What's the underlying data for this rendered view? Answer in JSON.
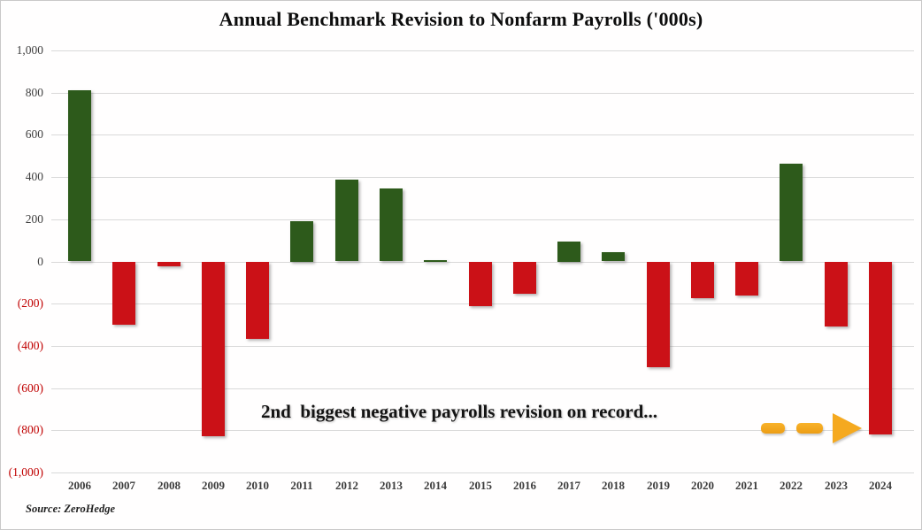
{
  "chart_data": {
    "type": "bar",
    "title": "Annual Benchmark Revision to Nonfarm Payrolls ('000s)",
    "categories": [
      "2006",
      "2007",
      "2008",
      "2009",
      "2010",
      "2011",
      "2012",
      "2013",
      "2014",
      "2015",
      "2016",
      "2017",
      "2018",
      "2019",
      "2020",
      "2021",
      "2022",
      "2023",
      "2024"
    ],
    "values": [
      810,
      -297,
      -21,
      -824,
      -366,
      192,
      386,
      345,
      7,
      -208,
      -150,
      95,
      43,
      -501,
      -173,
      -161,
      462,
      -306,
      -818
    ],
    "xlabel": "",
    "ylabel": "",
    "ylim": [
      -1000,
      1000
    ],
    "ytick_step": 200,
    "yticks": [
      {
        "value": 1000,
        "label": "1,000"
      },
      {
        "value": 800,
        "label": "800"
      },
      {
        "value": 600,
        "label": "600"
      },
      {
        "value": 400,
        "label": "400"
      },
      {
        "value": 200,
        "label": "200"
      },
      {
        "value": 0,
        "label": "0"
      },
      {
        "value": -200,
        "label": "(200)"
      },
      {
        "value": -400,
        "label": "(400)"
      },
      {
        "value": -600,
        "label": "(600)"
      },
      {
        "value": -800,
        "label": "(800)"
      },
      {
        "value": -1000,
        "label": "(1,000)"
      }
    ],
    "grid": "horizontal",
    "legend": "none",
    "colors": {
      "positive": "#2d5a1b",
      "negative": "#cb1117",
      "ylabel_positive": "#3f3f3f",
      "ylabel_negative": "#c00000",
      "xlabel": "#3d3d3d",
      "gridline": "#d9d9d9",
      "arrow": "#f5a91f"
    },
    "annotation": "2nd  biggest negative payrolls revision on record...",
    "source": "Source: ZeroHedge"
  }
}
